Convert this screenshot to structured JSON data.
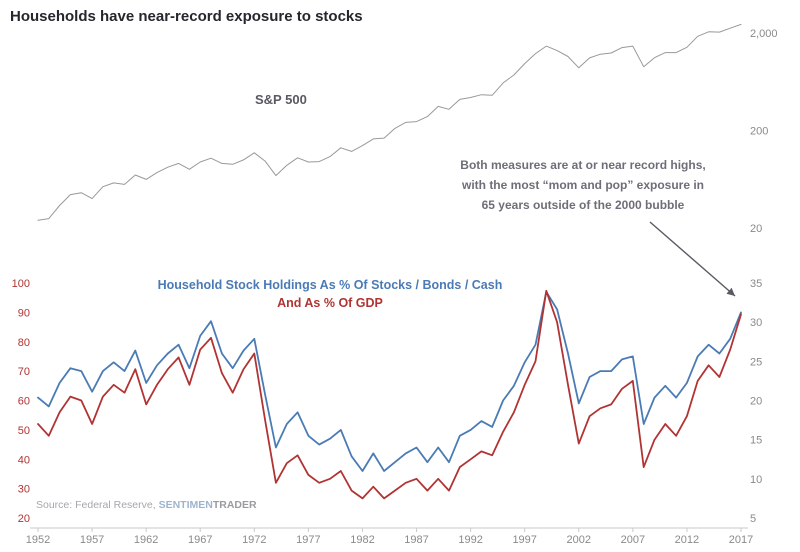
{
  "title": "Households have near-record exposure to stocks",
  "labels": {
    "sp500": "S&P 500",
    "legend_blue": "Household Stock Holdings As % Of Stocks / Bonds / Cash",
    "legend_red": "And As % Of GDP"
  },
  "annotation": {
    "lines": [
      "Both measures are at or near record highs,",
      "with the most “mom and pop” exposure in",
      "65 years outside of the 2000 bubble"
    ]
  },
  "source": {
    "prefix": "Source: Federal Reserve, ",
    "brand_blue": "SENTIMEN",
    "brand_gray": "TRADER"
  },
  "colors": {
    "title": "#26262e",
    "sp500_line": "#999999",
    "sp500_label": "#595963",
    "blue_series": "#4a7bb5",
    "red_series": "#b03433",
    "left_axis": "#b03433",
    "right_axis": "#8a8a8a",
    "annotation": "#6e6e78",
    "arrow": "#5a5a64",
    "axis_line": "#c9c9cf",
    "source_text": "#a6a6ae",
    "brand_blue": "#9db4d0"
  },
  "chart_data": [
    {
      "type": "line",
      "title": "S&P 500",
      "scale": "log",
      "axis_side": "right",
      "ylim": [
        20,
        2600
      ],
      "yticks": [
        20,
        200,
        2000
      ],
      "ytick_labels": [
        "20",
        "200",
        "2,000"
      ],
      "x": [
        1952,
        1953,
        1954,
        1955,
        1956,
        1957,
        1958,
        1959,
        1960,
        1961,
        1962,
        1963,
        1964,
        1965,
        1966,
        1967,
        1968,
        1969,
        1970,
        1971,
        1972,
        1973,
        1974,
        1975,
        1976,
        1977,
        1978,
        1979,
        1980,
        1981,
        1982,
        1983,
        1984,
        1985,
        1986,
        1987,
        1988,
        1989,
        1990,
        1991,
        1992,
        1993,
        1994,
        1995,
        1996,
        1997,
        1998,
        1999,
        2000,
        2001,
        2002,
        2003,
        2004,
        2005,
        2006,
        2007,
        2008,
        2009,
        2010,
        2011,
        2012,
        2013,
        2014,
        2015,
        2016,
        2017
      ],
      "values": [
        24,
        25,
        34,
        44,
        46,
        40,
        53,
        58,
        56,
        70,
        63,
        74,
        84,
        92,
        80,
        95,
        104,
        92,
        90,
        100,
        118,
        97,
        69,
        88,
        105,
        95,
        96,
        108,
        133,
        122,
        140,
        164,
        167,
        210,
        242,
        247,
        278,
        353,
        330,
        417,
        436,
        466,
        459,
        616,
        741,
        970,
        1229,
        1469,
        1320,
        1148,
        880,
        1112,
        1212,
        1248,
        1418,
        1468,
        903,
        1115,
        1258,
        1258,
        1426,
        1848,
        2059,
        2044,
        2239,
        2450
      ]
    },
    {
      "type": "line",
      "title": "Household Stock Holdings",
      "left_axis": {
        "ylim": [
          20,
          100
        ],
        "ticks": [
          100,
          90,
          80,
          70,
          60,
          50,
          40,
          30,
          20
        ]
      },
      "right_axis": {
        "ylim": [
          5,
          35
        ],
        "ticks": [
          35,
          30,
          25,
          20,
          15,
          10,
          5
        ]
      },
      "xticks": [
        1952,
        1957,
        1962,
        1967,
        1972,
        1977,
        1982,
        1987,
        1992,
        1997,
        2002,
        2007,
        2012,
        2017
      ],
      "x": [
        1952,
        1953,
        1954,
        1955,
        1956,
        1957,
        1958,
        1959,
        1960,
        1961,
        1962,
        1963,
        1964,
        1965,
        1966,
        1967,
        1968,
        1969,
        1970,
        1971,
        1972,
        1973,
        1974,
        1975,
        1976,
        1977,
        1978,
        1979,
        1980,
        1981,
        1982,
        1983,
        1984,
        1985,
        1986,
        1987,
        1988,
        1989,
        1990,
        1991,
        1992,
        1993,
        1994,
        1995,
        1996,
        1997,
        1998,
        1999,
        2000,
        2001,
        2002,
        2003,
        2004,
        2005,
        2006,
        2007,
        2008,
        2009,
        2010,
        2011,
        2012,
        2013,
        2014,
        2015,
        2016,
        2017
      ],
      "series": [
        {
          "name": "Household Stock Holdings As % Of Stocks / Bonds / Cash",
          "axis": "left",
          "values": [
            61,
            58,
            66,
            71,
            70,
            63,
            70,
            73,
            70,
            77,
            66,
            72,
            76,
            79,
            71,
            82,
            87,
            76,
            71,
            77,
            81,
            62,
            44,
            52,
            56,
            48,
            45,
            47,
            50,
            41,
            36,
            42,
            36,
            39,
            42,
            44,
            39,
            44,
            39,
            48,
            50,
            53,
            51,
            60,
            65,
            73,
            79,
            97,
            91,
            76,
            59,
            68,
            70,
            70,
            74,
            75,
            52,
            61,
            65,
            61,
            66,
            75,
            79,
            76,
            81,
            90
          ]
        },
        {
          "name": "And As % Of GDP",
          "axis": "right",
          "values": [
            17,
            15.5,
            18.5,
            20.5,
            20,
            17,
            20.5,
            22,
            21,
            24,
            19.5,
            22,
            24,
            25.5,
            22,
            26.5,
            28,
            23.5,
            21,
            24,
            26,
            17.5,
            9.5,
            12,
            13,
            10.5,
            9.5,
            10,
            11,
            8.5,
            7.5,
            9,
            7.5,
            8.5,
            9.5,
            10,
            8.5,
            10,
            8.5,
            11.5,
            12.5,
            13.5,
            13,
            16,
            18.5,
            22,
            25,
            34,
            30,
            22,
            14.5,
            18,
            19,
            19.5,
            21.5,
            22.5,
            11.5,
            15,
            17,
            15.5,
            18,
            22.5,
            24.5,
            23,
            26.5,
            31
          ]
        }
      ]
    }
  ]
}
